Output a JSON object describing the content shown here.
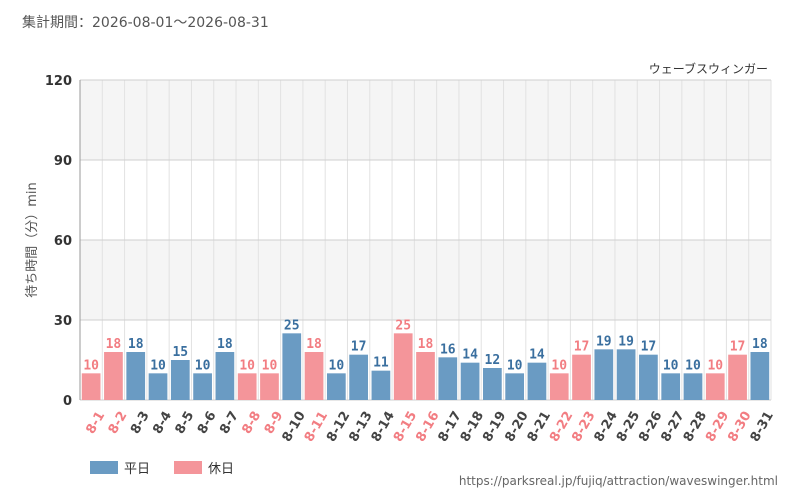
{
  "header": {
    "period": "集計期間：2026-08-01～2026-08-31",
    "attraction": "ウェーブスウィンガー"
  },
  "footer": {
    "url": "https://parksreal.jp/fujiq/attraction/waveswinger.html"
  },
  "legend": {
    "weekday": "平日",
    "holiday": "休日"
  },
  "colors": {
    "weekday": "#6a9bc3",
    "holiday": "#f4959a",
    "weekday_text": "#3a6f9f",
    "holiday_text": "#f27d82",
    "band": "#f5f5f5",
    "grid": "#e2e2e2"
  },
  "chart_data": {
    "type": "bar",
    "ylabel": "待ち時間（分）min",
    "ylim": [
      0,
      120
    ],
    "yticks": [
      "0",
      "30",
      "60",
      "90",
      "120"
    ],
    "grid": true,
    "legend_position": "bottom-left",
    "categories": [
      "8-1",
      "8-2",
      "8-3",
      "8-4",
      "8-5",
      "8-6",
      "8-7",
      "8-8",
      "8-9",
      "8-10",
      "8-11",
      "8-12",
      "8-13",
      "8-14",
      "8-15",
      "8-16",
      "8-17",
      "8-18",
      "8-19",
      "8-20",
      "8-21",
      "8-22",
      "8-23",
      "8-24",
      "8-25",
      "8-26",
      "8-27",
      "8-28",
      "8-29",
      "8-30",
      "8-31"
    ],
    "values": [
      10,
      18,
      18,
      10,
      15,
      10,
      18,
      10,
      10,
      25,
      18,
      10,
      17,
      11,
      25,
      18,
      16,
      14,
      12,
      10,
      14,
      10,
      17,
      19,
      19,
      17,
      10,
      10,
      10,
      17,
      18
    ],
    "day_type": [
      "holiday",
      "holiday",
      "weekday",
      "weekday",
      "weekday",
      "weekday",
      "weekday",
      "holiday",
      "holiday",
      "weekday",
      "holiday",
      "weekday",
      "weekday",
      "weekday",
      "holiday",
      "holiday",
      "weekday",
      "weekday",
      "weekday",
      "weekday",
      "weekday",
      "holiday",
      "holiday",
      "weekday",
      "weekday",
      "weekday",
      "weekday",
      "weekday",
      "holiday",
      "holiday",
      "weekday"
    ]
  }
}
